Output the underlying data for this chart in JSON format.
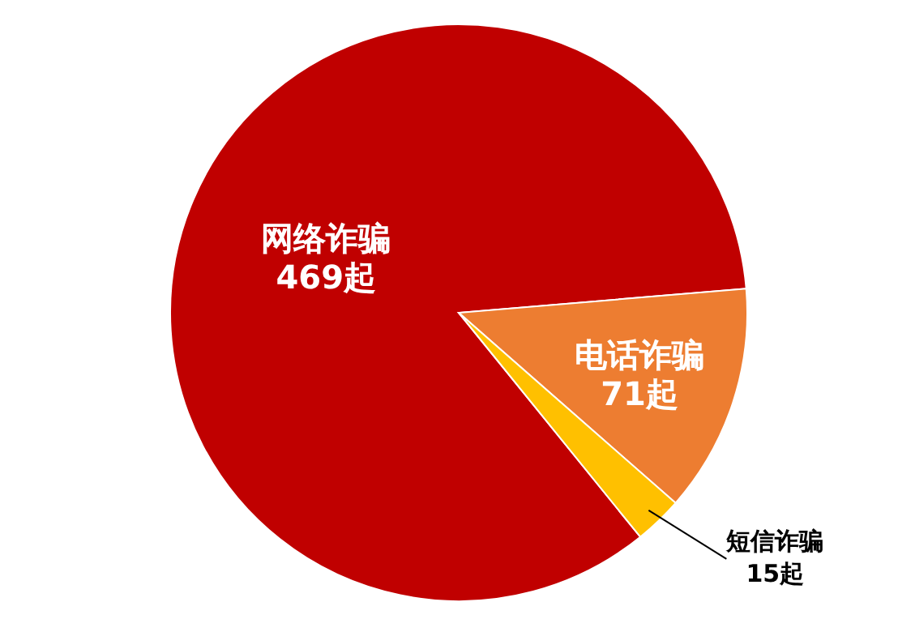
{
  "chart_data": {
    "type": "pie",
    "categories": [
      "网络诈骗",
      "电话诈骗",
      "短信诈骗"
    ],
    "values": [
      469,
      71,
      15
    ],
    "colors": [
      "#c00000",
      "#ed7d31",
      "#ffc000"
    ],
    "value_labels": [
      "469起",
      "71起",
      "15起"
    ]
  }
}
